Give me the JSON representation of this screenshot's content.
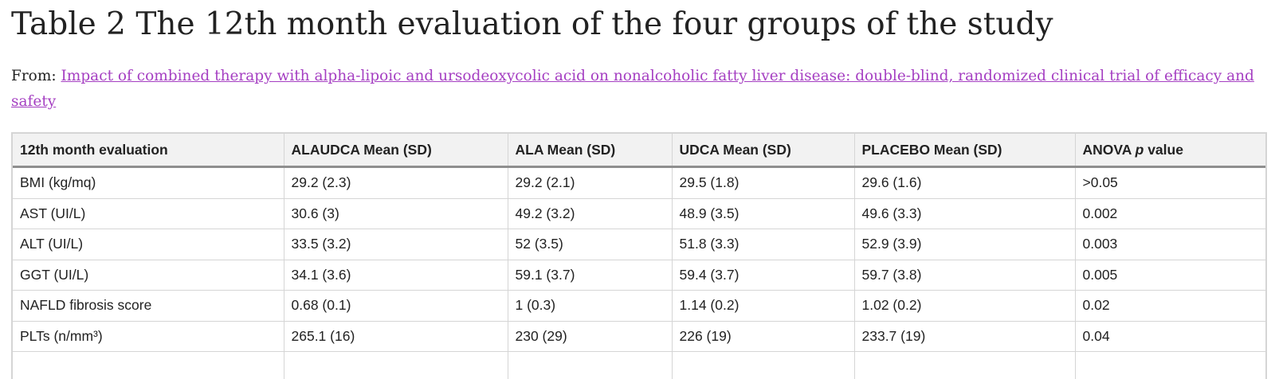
{
  "title": "Table 2 The 12th month evaluation of the four groups of the study",
  "from_label": "From:",
  "from_link": "Impact of combined therapy with alpha-lipoic and ursodeoxycolic acid on nonalcoholic fatty liver disease: double-blind, randomized clinical trial of efficacy and safety",
  "colors": {
    "link": "#a53fc2",
    "header_bg": "#f2f2f2",
    "border": "#d5d5d5"
  },
  "table": {
    "headers": [
      "12th month evaluation",
      "ALAUDCA Mean (SD)",
      "ALA Mean (SD)",
      "UDCA Mean (SD)",
      "PLACEBO Mean (SD)",
      {
        "pre": "ANOVA ",
        "em": "p",
        "post": " value"
      }
    ],
    "rows": [
      [
        "BMI (kg/mq)",
        "29.2 (2.3)",
        "29.2 (2.1)",
        "29.5 (1.8)",
        "29.6 (1.6)",
        ">0.05"
      ],
      [
        "AST (UI/L)",
        "30.6 (3)",
        "49.2 (3.2)",
        "48.9 (3.5)",
        "49.6 (3.3)",
        "0.002"
      ],
      [
        "ALT (UI/L)",
        "33.5 (3.2)",
        "52 (3.5)",
        "51.8 (3.3)",
        "52.9 (3.9)",
        "0.003"
      ],
      [
        "GGT (UI/L)",
        "34.1 (3.6)",
        "59.1 (3.7)",
        "59.4 (3.7)",
        "59.7 (3.8)",
        "0.005"
      ],
      [
        "NAFLD fibrosis score",
        "0.68 (0.1)",
        "1 (0.3)",
        "1.14 (0.2)",
        "1.02 (0.2)",
        "0.02"
      ],
      [
        "PLTs (n/mm³)",
        "265.1 (16)",
        "230 (29)",
        "226 (19)",
        "233.7 (19)",
        "0.04"
      ]
    ]
  }
}
